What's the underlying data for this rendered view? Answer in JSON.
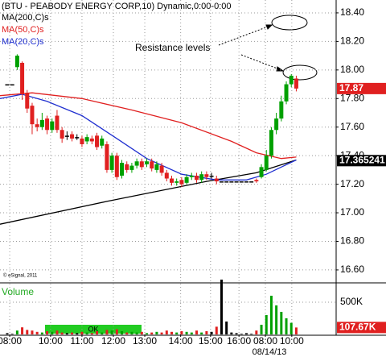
{
  "chart_data": {
    "type": "candlestick",
    "title": "(BTU - PEABODY ENERGY CORP,10) Dynamic,0:00-0:00",
    "copyright": "© eSignal, 2011",
    "annotation": "Resistance levels",
    "date_label": "08/14/13",
    "navigator_label": "OK",
    "grid": true,
    "up_color": "#00a000",
    "down_color": "#e02020",
    "flat_color": "#000000",
    "xlim": [
      -1.45,
      66
    ],
    "xticks": [
      {
        "value": 0.5,
        "label": "08:00"
      },
      {
        "value": 8.7,
        "label": "10:00"
      },
      {
        "value": 15,
        "label": "11:00"
      },
      {
        "value": 21.3,
        "label": "12:00"
      },
      {
        "value": 27.6,
        "label": "13:00"
      },
      {
        "value": 34.8,
        "label": "14:00"
      },
      {
        "value": 40.8,
        "label": "15:00"
      },
      {
        "value": 46.5,
        "label": "16:00"
      },
      {
        "value": 51.8,
        "label": "08:00"
      },
      {
        "value": 57.1,
        "label": "10:00"
      }
    ],
    "ylim": [
      16.515,
      18.49
    ],
    "yticks": [
      {
        "value": 16.6,
        "label": "16.60"
      },
      {
        "value": 16.8,
        "label": "16.80"
      },
      {
        "value": 17.0,
        "label": "17.00"
      },
      {
        "value": 17.2,
        "label": "17.20"
      },
      {
        "value": 17.4,
        "label": "17.40"
      },
      {
        "value": 17.6,
        "label": "17.60"
      },
      {
        "value": 17.8,
        "label": "17.80"
      },
      {
        "value": 18.0,
        "label": "18.00"
      },
      {
        "value": 18.2,
        "label": "18.20"
      },
      {
        "value": 18.4,
        "label": "18.40"
      }
    ],
    "price_tags": [
      {
        "value": 17.87,
        "color": "#e02020"
      },
      {
        "value": 17.365241,
        "color": "#000000"
      }
    ],
    "x": [
      0,
      1,
      2,
      3,
      4,
      5,
      6,
      7,
      8,
      9,
      10,
      11,
      12,
      13,
      14,
      15,
      16,
      17,
      18,
      19,
      20,
      21,
      22,
      23,
      24,
      25,
      26,
      27,
      28,
      29,
      30,
      31,
      32,
      33,
      34,
      35,
      36,
      37,
      38,
      39,
      40,
      41,
      42,
      43,
      44,
      45,
      46,
      47,
      48,
      49,
      50,
      51,
      52,
      53,
      54,
      55,
      56,
      57,
      58
    ],
    "open": [
      17.9,
      17.9,
      18.02,
      18.05,
      17.84,
      17.75,
      17.62,
      17.6,
      17.66,
      17.58,
      17.68,
      17.58,
      17.54,
      17.55,
      17.53,
      17.52,
      17.5,
      17.52,
      17.54,
      17.47,
      17.48,
      17.3,
      17.4,
      17.26,
      17.34,
      17.3,
      17.33,
      17.36,
      17.34,
      17.36,
      17.3,
      17.33,
      17.28,
      17.24,
      17.21,
      17.23,
      17.21,
      17.25,
      17.26,
      17.23,
      17.27,
      17.26,
      17.24,
      17.22,
      17.22,
      17.22,
      17.22,
      17.22,
      17.22,
      17.22,
      17.23,
      17.25,
      17.3,
      17.4,
      17.58,
      17.66,
      17.78,
      17.9,
      17.94
    ],
    "high": [
      17.9,
      17.9,
      18.11,
      18.06,
      17.86,
      17.77,
      17.66,
      17.7,
      17.68,
      17.66,
      17.72,
      17.6,
      17.57,
      17.57,
      17.55,
      17.54,
      17.55,
      17.54,
      17.56,
      17.54,
      17.5,
      17.42,
      17.42,
      17.37,
      17.36,
      17.35,
      17.38,
      17.38,
      17.38,
      17.38,
      17.36,
      17.35,
      17.3,
      17.26,
      17.24,
      17.25,
      17.27,
      17.28,
      17.28,
      17.29,
      17.29,
      17.28,
      17.26,
      17.22,
      17.22,
      17.22,
      17.22,
      17.22,
      17.22,
      17.22,
      17.24,
      17.34,
      17.44,
      17.6,
      17.7,
      17.82,
      17.92,
      17.97,
      17.96
    ],
    "low": [
      17.9,
      17.9,
      18.0,
      17.79,
      17.7,
      17.55,
      17.57,
      17.58,
      17.55,
      17.56,
      17.56,
      17.49,
      17.51,
      17.5,
      17.51,
      17.46,
      17.48,
      17.48,
      17.44,
      17.45,
      17.28,
      17.28,
      17.23,
      17.24,
      17.28,
      17.28,
      17.31,
      17.3,
      17.32,
      17.29,
      17.28,
      17.26,
      17.22,
      17.19,
      17.19,
      17.18,
      17.2,
      17.23,
      17.21,
      17.21,
      17.23,
      17.24,
      17.2,
      17.22,
      17.22,
      17.22,
      17.22,
      17.22,
      17.22,
      17.22,
      17.21,
      17.24,
      17.29,
      17.38,
      17.55,
      17.64,
      17.76,
      17.88,
      17.85
    ],
    "close": [
      17.9,
      17.9,
      18.1,
      17.83,
      17.73,
      17.62,
      17.6,
      17.65,
      17.58,
      17.64,
      17.58,
      17.52,
      17.54,
      17.52,
      17.53,
      17.48,
      17.53,
      17.5,
      17.46,
      17.52,
      17.3,
      17.4,
      17.25,
      17.35,
      17.3,
      17.33,
      17.36,
      17.32,
      17.36,
      17.31,
      17.34,
      17.28,
      17.24,
      17.21,
      17.22,
      17.2,
      17.25,
      17.26,
      17.23,
      17.27,
      17.25,
      17.26,
      17.22,
      17.22,
      17.22,
      17.22,
      17.22,
      17.22,
      17.22,
      17.22,
      17.22,
      17.32,
      17.4,
      17.58,
      17.66,
      17.78,
      17.9,
      17.96,
      17.87
    ],
    "series": [
      {
        "name": "MA(200,C)s",
        "color": "#000000",
        "x": [
          -1.45,
          20,
          40,
          50,
          58
        ],
        "values": [
          16.92,
          17.08,
          17.22,
          17.28,
          17.37
        ]
      },
      {
        "name": "MA(50,C)s",
        "color": "#e02020",
        "x": [
          -1.45,
          5,
          15,
          25,
          35,
          45,
          50,
          55,
          58
        ],
        "values": [
          17.82,
          17.84,
          17.8,
          17.72,
          17.63,
          17.5,
          17.42,
          17.38,
          17.39
        ]
      },
      {
        "name": "MA(20,C)s",
        "color": "#2030d0",
        "x": [
          -1.45,
          3,
          8,
          15,
          22,
          28,
          35,
          42,
          48,
          52,
          55,
          58
        ],
        "values": [
          17.8,
          17.83,
          17.78,
          17.68,
          17.52,
          17.38,
          17.27,
          17.23,
          17.23,
          17.27,
          17.32,
          17.37
        ]
      }
    ],
    "volume": {
      "title": "Volume",
      "ylim": [
        0,
        787000
      ],
      "yticks": [
        {
          "value": 500000,
          "label": "500K"
        }
      ],
      "last_tag": {
        "value": 107670,
        "label": "107.67K"
      },
      "values": [
        20000,
        10000,
        60000,
        110000,
        70000,
        60000,
        40000,
        30000,
        50000,
        40000,
        60000,
        30000,
        20000,
        30000,
        20000,
        40000,
        30000,
        20000,
        50000,
        30000,
        70000,
        60000,
        80000,
        50000,
        30000,
        40000,
        30000,
        40000,
        20000,
        30000,
        40000,
        30000,
        60000,
        40000,
        30000,
        50000,
        40000,
        30000,
        60000,
        30000,
        50000,
        40000,
        120000,
        850000,
        200000,
        30000,
        20000,
        10000,
        20000,
        10000,
        60000,
        150000,
        300000,
        600000,
        450000,
        350000,
        250000,
        180000,
        107670
      ]
    }
  }
}
